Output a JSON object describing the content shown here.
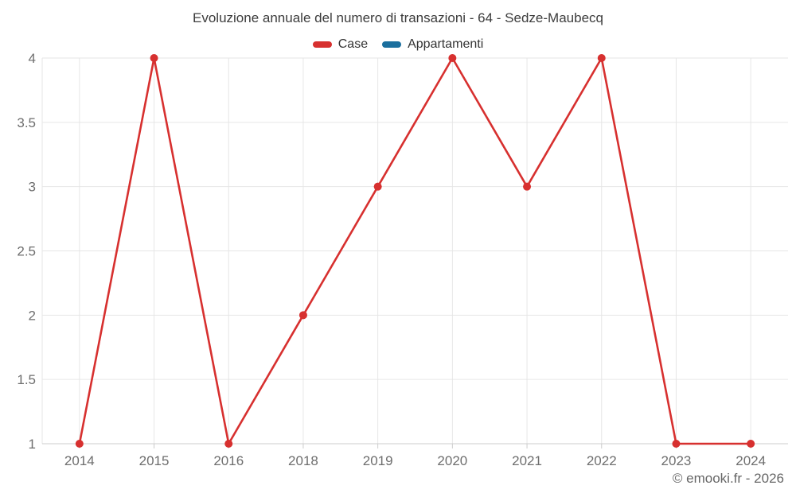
{
  "title": "Evoluzione annuale del numero di transazioni - 64 - Sedze-Maubecq",
  "footer": "© emooki.fr - 2026",
  "colors": {
    "case_red": "#d7302f",
    "appartamenti_blue": "#1b6f9e",
    "gridline": "#e6e6e6",
    "axis_line": "#cccccc",
    "axis_label": "#6e6e6e"
  },
  "legend": [
    {
      "name": "Case",
      "color": "#d7302f"
    },
    {
      "name": "Appartamenti",
      "color": "#1b6f9e"
    }
  ],
  "chart_data": {
    "type": "line",
    "title": "Evoluzione annuale del numero di transazioni - 64 - Sedze-Maubecq",
    "categories": [
      "2014",
      "2015",
      "2016",
      "2018",
      "2019",
      "2020",
      "2021",
      "2022",
      "2023",
      "2024"
    ],
    "series": [
      {
        "name": "Case",
        "color": "#d7302f",
        "values": [
          1,
          4,
          1,
          2,
          3,
          4,
          3,
          4,
          1,
          1
        ]
      },
      {
        "name": "Appartamenti",
        "color": "#1b6f9e",
        "values": []
      }
    ],
    "xlabel": "",
    "ylabel": "",
    "ylim": [
      1,
      4
    ],
    "yticks": [
      1,
      1.5,
      2,
      2.5,
      3,
      3.5,
      4
    ],
    "grid": true,
    "legend_position": "top",
    "marker": "circle"
  }
}
